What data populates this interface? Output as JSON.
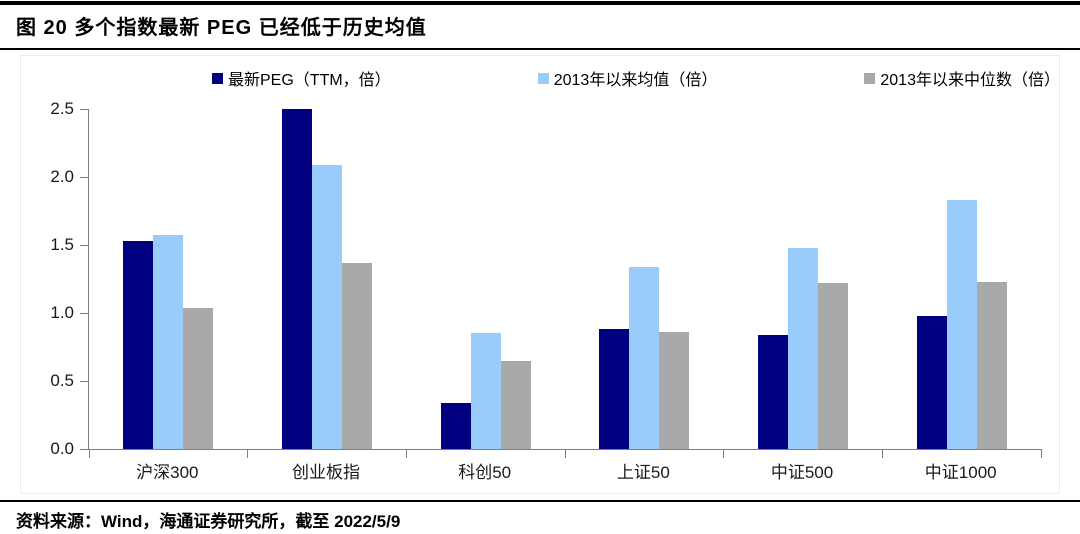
{
  "header": {
    "title": "图 20 多个指数最新 PEG 已经低于历史均值"
  },
  "chart_data": {
    "type": "bar",
    "title": "图 20 多个指数最新 PEG 已经低于历史均值",
    "categories": [
      "沪深300",
      "创业板指",
      "科创50",
      "上证50",
      "中证500",
      "中证1000"
    ],
    "series": [
      {
        "name": "最新PEG（TTM，倍）",
        "color": "#000080",
        "values": [
          1.53,
          2.5,
          0.34,
          0.88,
          0.84,
          0.98
        ]
      },
      {
        "name": "2013年以来均值（倍）",
        "color": "#99CCFA",
        "values": [
          1.57,
          2.09,
          0.85,
          1.34,
          1.48,
          1.83
        ]
      },
      {
        "name": "2013年以来中位数（倍）",
        "color": "#A9A9A9",
        "values": [
          1.04,
          1.37,
          0.65,
          0.86,
          1.22,
          1.23
        ]
      }
    ],
    "xlabel": "",
    "ylabel": "",
    "ylim": [
      0,
      2.5
    ],
    "ytick_step": 0.5,
    "ytick_labels": [
      "0.0",
      "0.5",
      "1.0",
      "1.5",
      "2.0",
      "2.5"
    ],
    "legend_position": "top",
    "grid": false
  },
  "footer": {
    "source": "资料来源：Wind，海通证券研究所，截至 2022/5/9"
  }
}
